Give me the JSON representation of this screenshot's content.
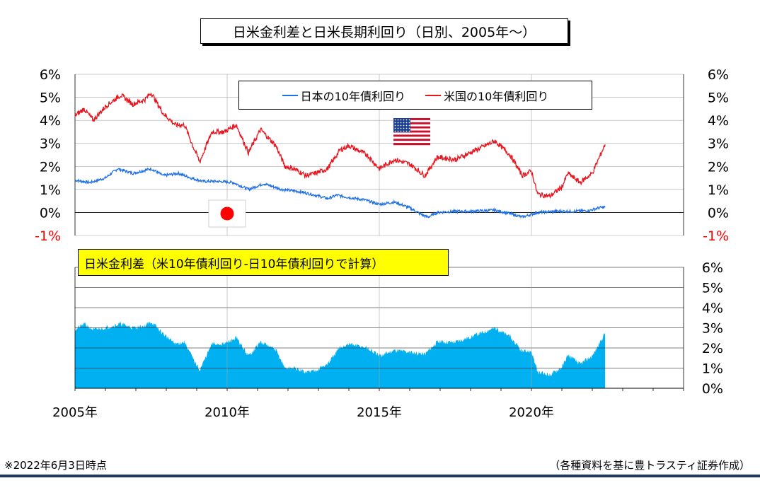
{
  "title": "日米金利差と日米長期利回り（日別、2005年～）",
  "footer_left": "※2022年6月3日時点",
  "footer_right": "（各種資料を基に豊トラスティ証券作成）",
  "colors": {
    "japan": "#1f6fe6",
    "us": "#e8141e",
    "spread": "#00b0f0",
    "negative_tick": "#ff0000",
    "grid": "#a6a6a6"
  },
  "chart_data": [
    {
      "type": "line",
      "legend_position": "top-center",
      "x_ticks": [
        "2005年",
        "2010年",
        "2015年",
        "2020年"
      ],
      "xlim": [
        2005,
        2025
      ],
      "ylim": [
        -1,
        6
      ],
      "y_ticks": [
        "6%",
        "5%",
        "4%",
        "3%",
        "2%",
        "1%",
        "0%",
        "-1%"
      ],
      "series": [
        {
          "name": "日本の10年債利回り",
          "color": "#1f6fe6",
          "x": [
            2005.0,
            2005.5,
            2006.0,
            2006.4,
            2006.9,
            2007.5,
            2007.9,
            2008.4,
            2008.8,
            2009.2,
            2009.7,
            2010.2,
            2010.7,
            2011.2,
            2011.8,
            2012.4,
            2012.9,
            2013.3,
            2013.6,
            2014.0,
            2014.5,
            2015.0,
            2015.5,
            2016.0,
            2016.4,
            2016.6,
            2016.9,
            2017.5,
            2018.0,
            2018.8,
            2019.3,
            2019.7,
            2020.2,
            2020.8,
            2021.4,
            2021.9,
            2022.2,
            2022.42
          ],
          "values": [
            1.4,
            1.3,
            1.5,
            1.9,
            1.7,
            1.9,
            1.6,
            1.7,
            1.5,
            1.35,
            1.35,
            1.3,
            1.0,
            1.25,
            1.0,
            0.9,
            0.75,
            0.6,
            0.75,
            0.65,
            0.55,
            0.35,
            0.45,
            0.2,
            -0.1,
            -0.2,
            0.0,
            0.05,
            0.05,
            0.1,
            -0.05,
            -0.2,
            0.0,
            0.05,
            0.05,
            0.08,
            0.2,
            0.23
          ]
        },
        {
          "name": "米国の10年債利回り",
          "color": "#e8141e",
          "x": [
            2005.0,
            2005.3,
            2005.6,
            2006.0,
            2006.5,
            2006.9,
            2007.3,
            2007.5,
            2007.9,
            2008.3,
            2008.6,
            2008.9,
            2009.1,
            2009.5,
            2009.9,
            2010.3,
            2010.7,
            2011.1,
            2011.6,
            2011.9,
            2012.2,
            2012.6,
            2012.9,
            2013.3,
            2013.7,
            2014.0,
            2014.6,
            2015.0,
            2015.5,
            2016.0,
            2016.5,
            2016.9,
            2017.5,
            2018.0,
            2018.8,
            2019.3,
            2019.7,
            2020.0,
            2020.2,
            2020.6,
            2021.0,
            2021.2,
            2021.6,
            2022.0,
            2022.3,
            2022.42
          ],
          "values": [
            4.2,
            4.5,
            4.0,
            4.6,
            5.1,
            4.7,
            4.9,
            5.2,
            4.3,
            3.8,
            3.8,
            2.8,
            2.2,
            3.5,
            3.5,
            3.8,
            2.6,
            3.6,
            2.9,
            2.0,
            1.9,
            1.6,
            1.7,
            1.9,
            2.7,
            2.9,
            2.5,
            1.9,
            2.3,
            2.1,
            1.6,
            2.4,
            2.3,
            2.6,
            3.1,
            2.5,
            1.6,
            1.8,
            0.8,
            0.7,
            1.1,
            1.7,
            1.3,
            1.7,
            2.6,
            2.95
          ]
        }
      ]
    },
    {
      "type": "area",
      "title": "日米金利差（米10年債利回り-日10年債利回りで計算）",
      "x_ticks": [
        "2005年",
        "2010年",
        "2015年",
        "2020年"
      ],
      "xlim": [
        2005,
        2025
      ],
      "ylim": [
        0,
        6
      ],
      "y_ticks": [
        "6%",
        "5%",
        "4%",
        "3%",
        "2%",
        "1%",
        "0%"
      ],
      "series": [
        {
          "name": "日米金利差",
          "color": "#00b0f0",
          "x": [
            2005.0,
            2005.3,
            2005.6,
            2006.0,
            2006.5,
            2006.9,
            2007.3,
            2007.5,
            2007.9,
            2008.3,
            2008.6,
            2008.9,
            2009.1,
            2009.5,
            2009.9,
            2010.3,
            2010.7,
            2011.1,
            2011.6,
            2011.9,
            2012.2,
            2012.6,
            2012.9,
            2013.3,
            2013.7,
            2014.0,
            2014.6,
            2015.0,
            2015.5,
            2016.0,
            2016.5,
            2016.9,
            2017.5,
            2018.0,
            2018.8,
            2019.3,
            2019.7,
            2020.0,
            2020.2,
            2020.6,
            2021.0,
            2021.2,
            2021.6,
            2022.0,
            2022.3,
            2022.42
          ],
          "values": [
            2.9,
            3.2,
            2.9,
            3.0,
            3.2,
            3.0,
            3.1,
            3.3,
            2.7,
            2.2,
            2.3,
            1.4,
            0.9,
            2.2,
            2.2,
            2.5,
            1.6,
            2.3,
            1.9,
            1.0,
            1.0,
            0.8,
            0.9,
            1.2,
            2.0,
            2.2,
            2.0,
            1.6,
            1.9,
            1.8,
            1.7,
            2.3,
            2.3,
            2.55,
            3.0,
            2.55,
            1.8,
            1.85,
            0.8,
            0.65,
            1.05,
            1.65,
            1.2,
            1.6,
            2.4,
            2.75
          ]
        }
      ]
    }
  ]
}
